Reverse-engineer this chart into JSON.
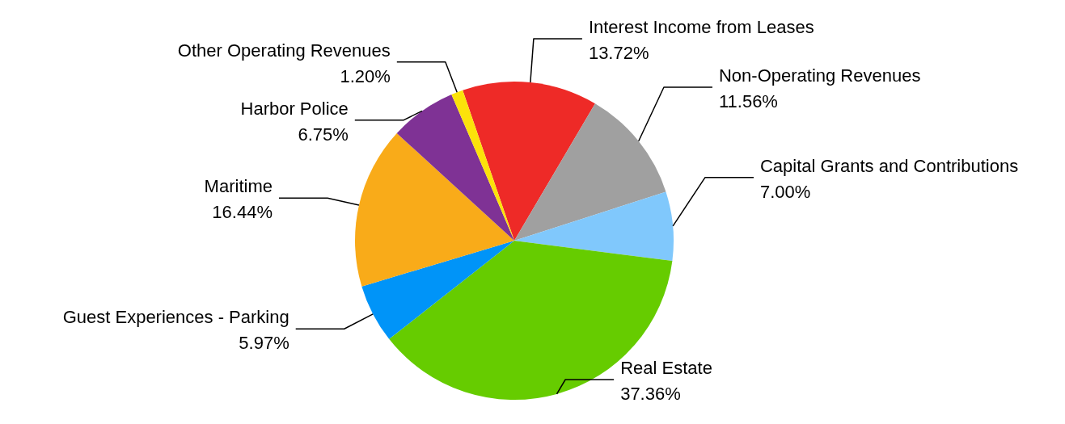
{
  "chart_data": {
    "type": "pie",
    "categories": [
      "Interest Income from Leases",
      "Non-Operating Revenues",
      "Capital Grants and Contributions",
      "Real Estate",
      "Guest Experiences - Parking",
      "Maritime",
      "Harbor Police",
      "Other Operating Revenues"
    ],
    "values": [
      13.72,
      11.56,
      7.0,
      37.36,
      5.97,
      16.44,
      6.75,
      1.2
    ],
    "value_labels": [
      "13.72%",
      "11.56%",
      "7.00%",
      "37.36%",
      "5.97%",
      "16.44%",
      "6.75%",
      "1.20%"
    ],
    "colors": [
      "#ee2a27",
      "#a0a0a0",
      "#80c8fc",
      "#66cc00",
      "#0094f8",
      "#f9ab19",
      "#7f3295",
      "#fce20a"
    ]
  }
}
